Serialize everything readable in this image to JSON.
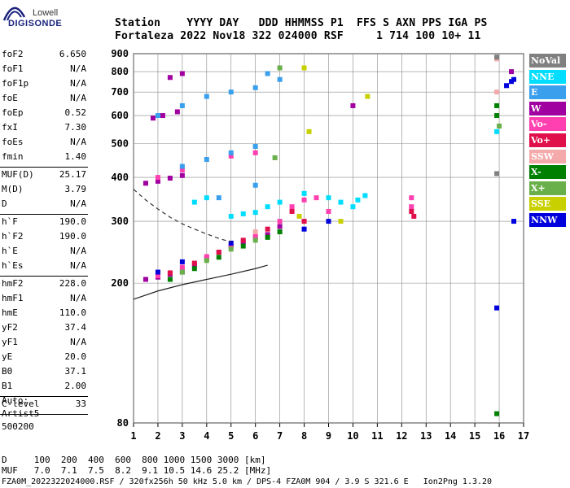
{
  "logo": {
    "line1": "Lowell",
    "line2": "DIGISONDE"
  },
  "header": {
    "row1": "Station    YYYY DAY   DDD HHMMSS P1  FFS S AXN PPS IGA PS",
    "row2": "Fortaleza 2022 Nov18 322 024000 RSF     1 714 100 10+ 11"
  },
  "params_group1": [
    {
      "k": "foF2",
      "v": "6.650"
    },
    {
      "k": "foF1",
      "v": "N/A"
    },
    {
      "k": "foF1p",
      "v": "N/A"
    },
    {
      "k": "foE",
      "v": "N/A"
    },
    {
      "k": "foEp",
      "v": "0.52"
    },
    {
      "k": "fxI",
      "v": "7.30"
    },
    {
      "k": "foEs",
      "v": "N/A"
    },
    {
      "k": "fmin",
      "v": "1.40"
    }
  ],
  "params_group2": [
    {
      "k": "MUF(D)",
      "v": "25.17"
    },
    {
      "k": "M(D)",
      "v": "3.79"
    },
    {
      "k": "D",
      "v": "N/A"
    }
  ],
  "params_group3": [
    {
      "k": "h`F",
      "v": "190.0"
    },
    {
      "k": "h`F2",
      "v": "190.0"
    },
    {
      "k": "h`E",
      "v": "N/A"
    },
    {
      "k": "h`Es",
      "v": "N/A"
    }
  ],
  "params_group4": [
    {
      "k": "hmF2",
      "v": "228.0"
    },
    {
      "k": "hmF1",
      "v": "N/A"
    },
    {
      "k": "hmE",
      "v": "110.0"
    },
    {
      "k": "yF2",
      "v": "37.4"
    },
    {
      "k": "yF1",
      "v": "N/A"
    },
    {
      "k": "yE",
      "v": "20.0"
    },
    {
      "k": "B0",
      "v": "37.1"
    },
    {
      "k": "B1",
      "v": "2.00"
    }
  ],
  "clevel": {
    "k": "C-level",
    "v": "33"
  },
  "auto": {
    "line1": "Auto:",
    "line2": "Artist5",
    "line3": "500200"
  },
  "footer": {
    "d_row": "D     100  200  400  600  800 1000 1500 3000 [km]",
    "muf_row": "MUF   7.0  7.1  7.5  8.2  9.1 10.5 14.6 25.2 [MHz]",
    "file_row": "FZA0M_2022322024000.RSF / 320fx256h 50 kHz 5.0 km / DPS-4 FZA0M 904 / 3.9 S 321.6 E   Ion2Png 1.3.20"
  },
  "legend": [
    {
      "label": "NoVal",
      "color": "#808080"
    },
    {
      "label": "NNE",
      "color": "#00ddff"
    },
    {
      "label": "E",
      "color": "#3aa0ee"
    },
    {
      "label": "W",
      "color": "#a000a0"
    },
    {
      "label": "Vo-",
      "color": "#ff40b0"
    },
    {
      "label": "Vo+",
      "color": "#e0104a"
    },
    {
      "label": "SSW",
      "color": "#f4aaaa"
    },
    {
      "label": "X-",
      "color": "#008000"
    },
    {
      "label": "X+",
      "color": "#6ab04a"
    },
    {
      "label": "SSE",
      "color": "#c8d000"
    },
    {
      "label": "NNW",
      "color": "#0000dd"
    }
  ],
  "chart_data": {
    "type": "scatter",
    "title": "",
    "xlabel": "",
    "ylabel": "",
    "xlim": [
      1,
      17
    ],
    "ylim": [
      80,
      900
    ],
    "x_ticks": [
      1,
      2,
      3,
      4,
      5,
      6,
      7,
      8,
      9,
      10,
      11,
      12,
      13,
      14,
      15,
      16,
      17
    ],
    "y_ticks": [
      80,
      200,
      300,
      400,
      500,
      600,
      700,
      800,
      900
    ],
    "y_scale": "log",
    "grid": true,
    "legend_position": "right",
    "series": [
      {
        "name": "W",
        "points": [
          [
            1.5,
            205
          ],
          [
            2,
            208
          ],
          [
            2.5,
            212
          ],
          [
            3,
            215
          ],
          [
            3.5,
            225
          ],
          [
            4,
            235
          ],
          [
            4.5,
            245
          ],
          [
            5,
            255
          ],
          [
            5.5,
            262
          ],
          [
            6,
            270
          ],
          [
            6.5,
            275
          ],
          [
            7,
            290
          ],
          [
            1.5,
            385
          ],
          [
            2,
            390
          ],
          [
            2.5,
            398
          ],
          [
            3,
            405
          ],
          [
            1.8,
            590
          ],
          [
            2.2,
            600
          ],
          [
            2.8,
            615
          ],
          [
            2.5,
            770
          ],
          [
            3,
            790
          ],
          [
            10,
            640
          ],
          [
            16.5,
            800
          ]
        ]
      },
      {
        "name": "Vo-",
        "points": [
          [
            2,
            210
          ],
          [
            3,
            222
          ],
          [
            4,
            238
          ],
          [
            5,
            255
          ],
          [
            6,
            272
          ],
          [
            7,
            300
          ],
          [
            7.5,
            330
          ],
          [
            8,
            345
          ],
          [
            8.5,
            350
          ],
          [
            9,
            320
          ],
          [
            2,
            400
          ],
          [
            3,
            420
          ],
          [
            5,
            460
          ],
          [
            6,
            470
          ],
          [
            12.4,
            330
          ],
          [
            12.4,
            350
          ]
        ]
      },
      {
        "name": "Vo+",
        "points": [
          [
            2.5,
            214
          ],
          [
            3.5,
            228
          ],
          [
            4.5,
            245
          ],
          [
            5.5,
            265
          ],
          [
            6.5,
            285
          ],
          [
            7.5,
            320
          ],
          [
            8,
            300
          ],
          [
            12.4,
            320
          ],
          [
            12.5,
            310
          ]
        ]
      },
      {
        "name": "NNE",
        "points": [
          [
            5,
            310
          ],
          [
            5.5,
            315
          ],
          [
            6,
            318
          ],
          [
            6.5,
            330
          ],
          [
            7,
            340
          ],
          [
            8,
            360
          ],
          [
            9,
            350
          ],
          [
            9.5,
            340
          ],
          [
            10,
            330
          ],
          [
            10.2,
            345
          ],
          [
            10.5,
            355
          ],
          [
            4,
            350
          ],
          [
            3.5,
            340
          ],
          [
            15.9,
            540
          ]
        ]
      },
      {
        "name": "E",
        "points": [
          [
            2,
            600
          ],
          [
            3,
            640
          ],
          [
            4,
            680
          ],
          [
            5,
            700
          ],
          [
            6,
            720
          ],
          [
            6.5,
            790
          ],
          [
            7,
            760
          ],
          [
            3,
            430
          ],
          [
            4,
            450
          ],
          [
            5,
            470
          ],
          [
            6,
            490
          ],
          [
            4.5,
            350
          ],
          [
            6,
            380
          ]
        ]
      },
      {
        "name": "X-",
        "points": [
          [
            2.5,
            205
          ],
          [
            3.5,
            220
          ],
          [
            4.5,
            237
          ],
          [
            5.5,
            255
          ],
          [
            6.5,
            270
          ],
          [
            7,
            280
          ],
          [
            15.9,
            640
          ],
          [
            15.9,
            600
          ],
          [
            15.9,
            85
          ]
        ]
      },
      {
        "name": "X+",
        "points": [
          [
            3,
            215
          ],
          [
            4,
            232
          ],
          [
            5,
            250
          ],
          [
            6,
            265
          ],
          [
            6.8,
            455
          ],
          [
            7,
            820
          ],
          [
            16,
            560
          ]
        ]
      },
      {
        "name": "SSE",
        "points": [
          [
            7.8,
            310
          ],
          [
            8,
            820
          ],
          [
            8.2,
            540
          ],
          [
            10.6,
            680
          ],
          [
            9.5,
            300
          ]
        ]
      },
      {
        "name": "NNW",
        "points": [
          [
            2,
            215
          ],
          [
            3,
            230
          ],
          [
            5,
            260
          ],
          [
            8,
            285
          ],
          [
            9,
            300
          ],
          [
            16.3,
            730
          ],
          [
            16.5,
            750
          ],
          [
            16.6,
            760
          ],
          [
            15.9,
            170
          ],
          [
            16.6,
            300
          ]
        ]
      },
      {
        "name": "SSW",
        "points": [
          [
            15.9,
            870
          ],
          [
            15.9,
            700
          ],
          [
            6,
            280
          ]
        ]
      },
      {
        "name": "NoVal",
        "points": [
          [
            15.9,
            880
          ],
          [
            15.9,
            410
          ]
        ]
      }
    ],
    "annotations": {
      "dashed_curve": [
        [
          1,
          370
        ],
        [
          1.5,
          345
        ],
        [
          2,
          325
        ],
        [
          2.5,
          308
        ],
        [
          3,
          295
        ],
        [
          3.5,
          285
        ],
        [
          4,
          276
        ],
        [
          4.5,
          268
        ],
        [
          5,
          262
        ]
      ],
      "solid_curve": [
        [
          1,
          180
        ],
        [
          2,
          190
        ],
        [
          3,
          198
        ],
        [
          4,
          205
        ],
        [
          5,
          212
        ],
        [
          6,
          220
        ],
        [
          6.5,
          225
        ]
      ]
    }
  }
}
